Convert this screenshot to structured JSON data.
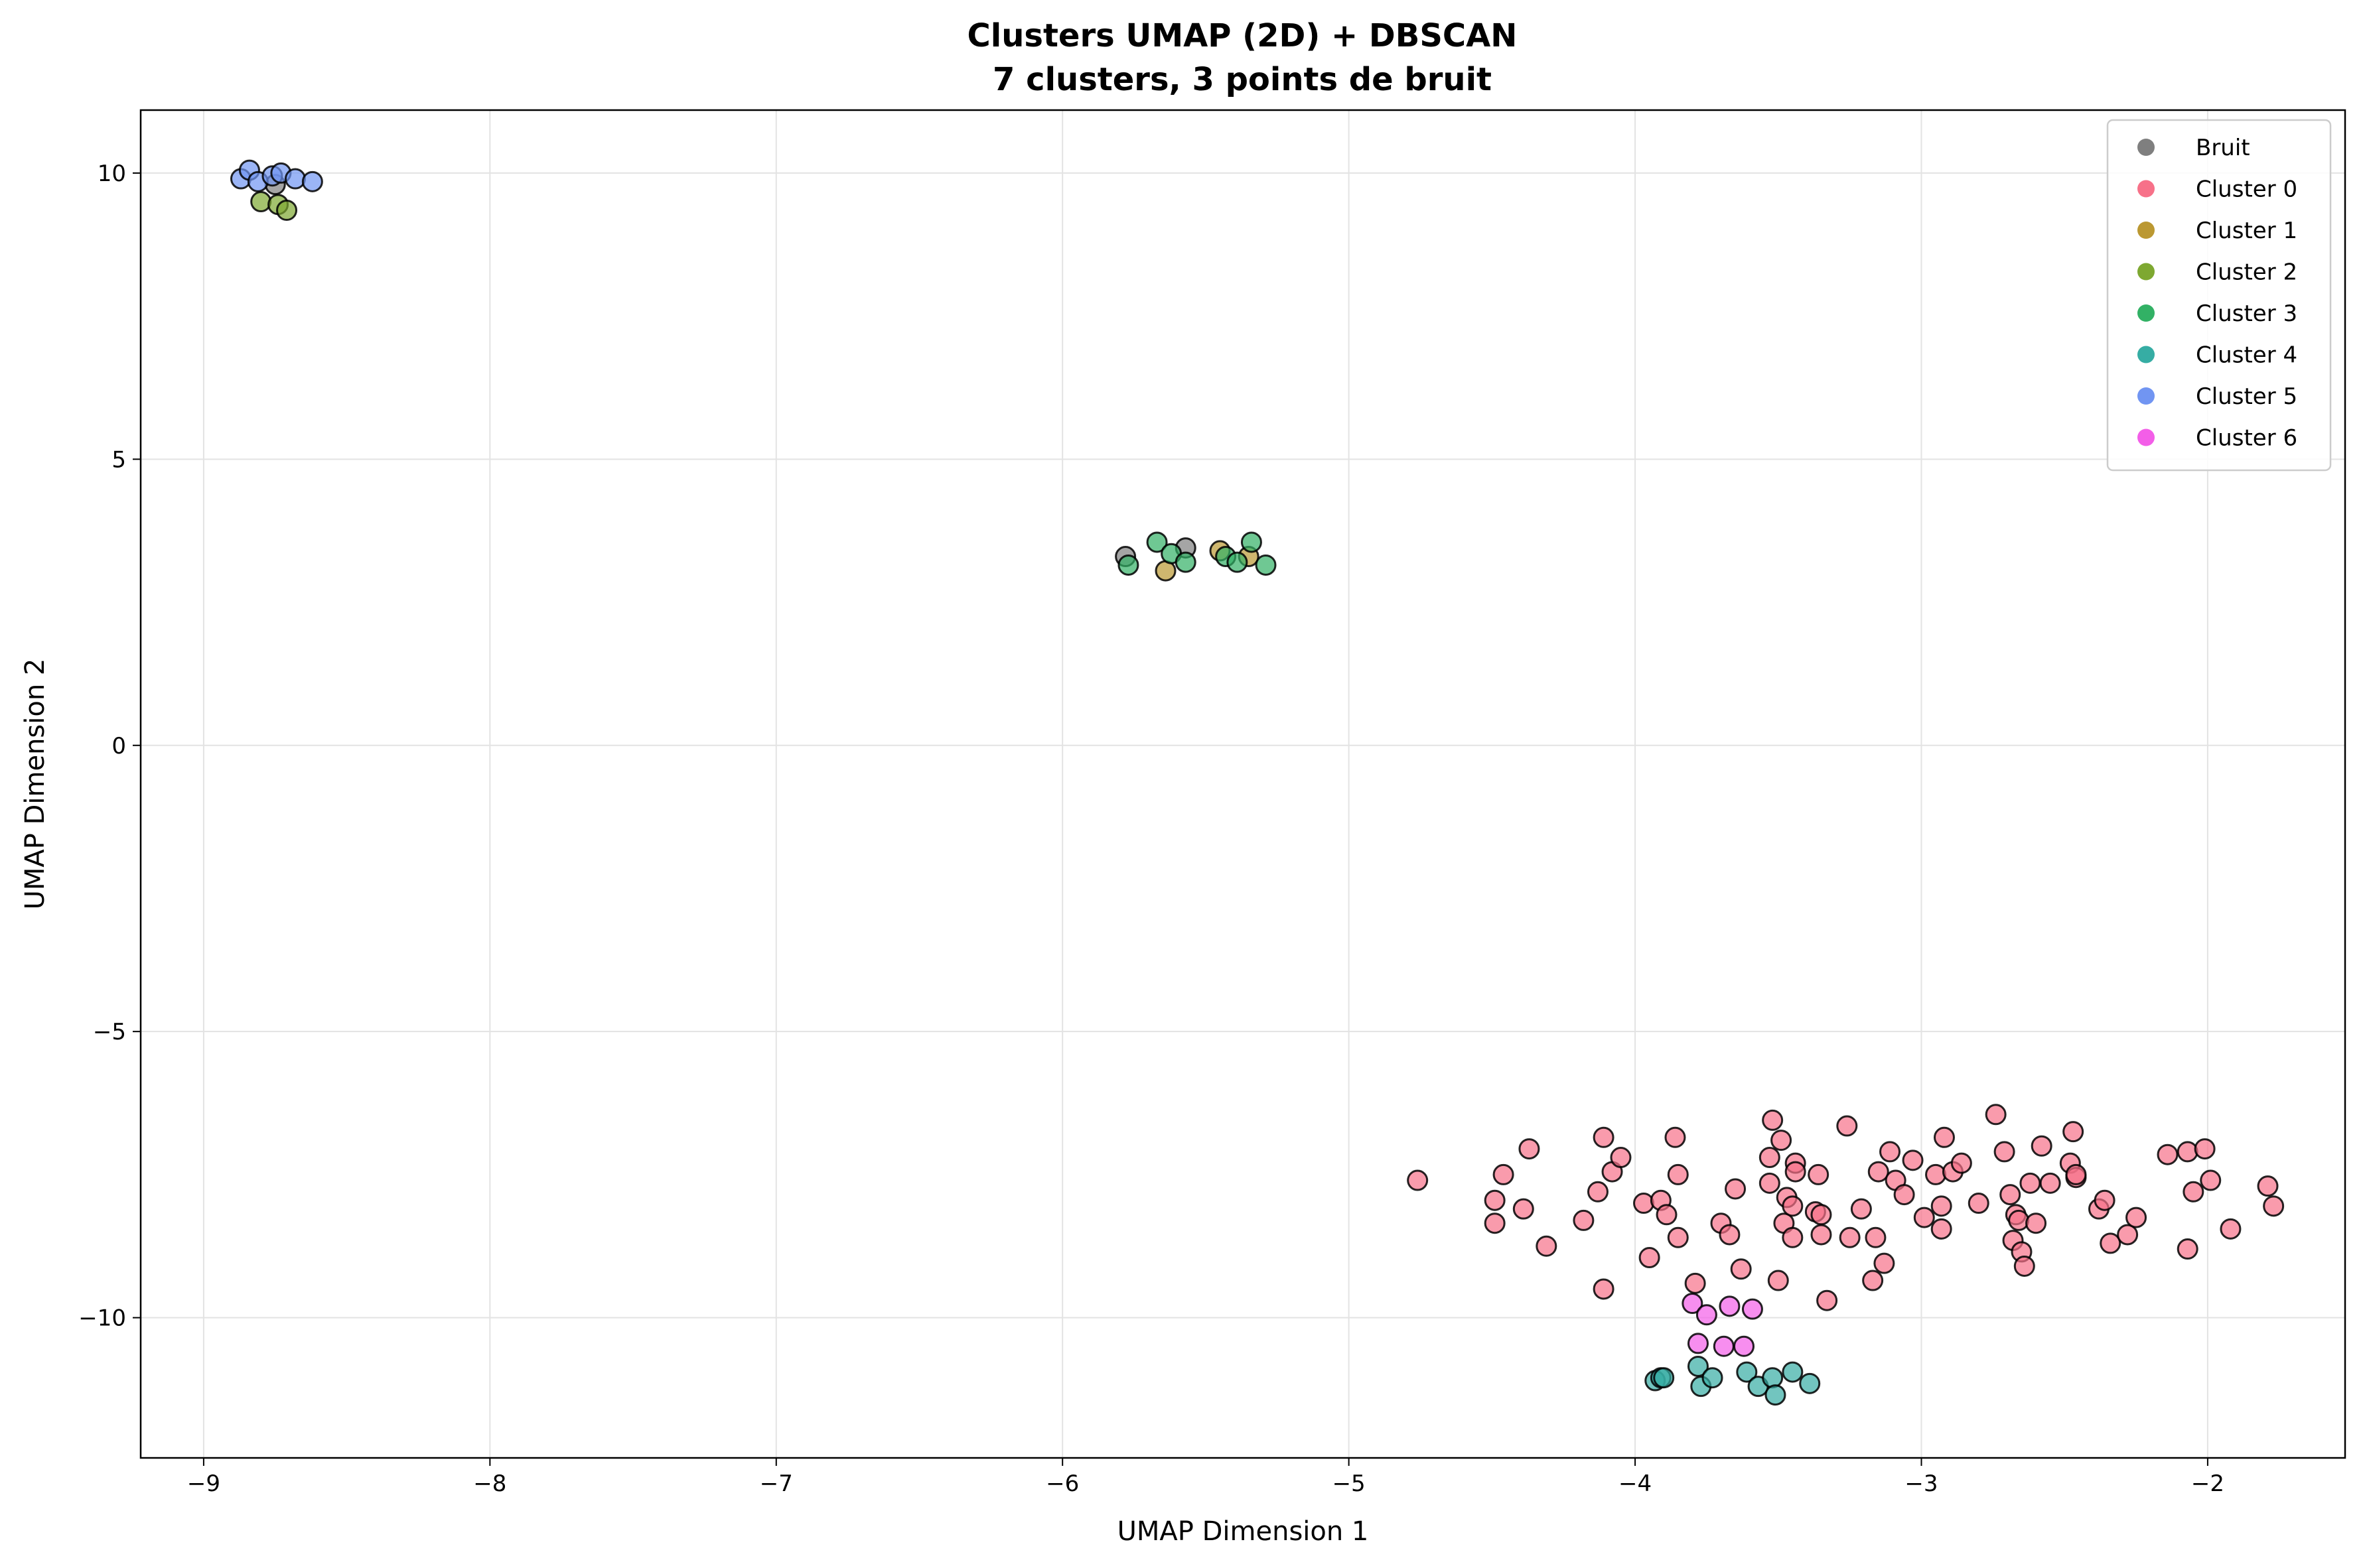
{
  "chart_data": {
    "type": "scatter",
    "title": "Clusters UMAP (2D) + DBSCAN",
    "subtitle": "7 clusters, 3 points de bruit",
    "xlabel": "UMAP Dimension 1",
    "ylabel": "UMAP Dimension 2",
    "xlim": [
      -9.22,
      -1.52
    ],
    "ylim": [
      -12.45,
      11.1
    ],
    "xticks": [
      -9,
      -8,
      -7,
      -6,
      -5,
      -4,
      -3,
      -2
    ],
    "yticks": [
      10,
      5,
      0,
      -5,
      -10
    ],
    "xtick_labels": [
      "−9",
      "−8",
      "−7",
      "−6",
      "−5",
      "−4",
      "−3",
      "−2"
    ],
    "ytick_labels": [
      "10",
      "5",
      "0",
      "−5",
      "−10"
    ],
    "grid": true,
    "legend_position": "top-right",
    "series": [
      {
        "name": "Bruit",
        "color": "#7f7f7f",
        "points": [
          [
            -8.75,
            9.8
          ],
          [
            -5.78,
            3.3
          ],
          [
            -5.57,
            3.45
          ]
        ]
      },
      {
        "name": "Cluster 0",
        "color": "#f77189",
        "points": [
          [
            -4.76,
            -7.6
          ],
          [
            -4.49,
            -7.95
          ],
          [
            -4.49,
            -8.35
          ],
          [
            -4.46,
            -7.5
          ],
          [
            -4.39,
            -8.1
          ],
          [
            -4.37,
            -7.05
          ],
          [
            -4.31,
            -8.75
          ],
          [
            -4.18,
            -8.3
          ],
          [
            -4.13,
            -7.8
          ],
          [
            -4.11,
            -6.85
          ],
          [
            -4.11,
            -9.5
          ],
          [
            -4.08,
            -7.45
          ],
          [
            -4.05,
            -7.2
          ],
          [
            -3.97,
            -8.0
          ],
          [
            -3.95,
            -8.95
          ],
          [
            -3.91,
            -7.95
          ],
          [
            -3.89,
            -8.2
          ],
          [
            -3.86,
            -6.85
          ],
          [
            -3.85,
            -7.5
          ],
          [
            -3.85,
            -8.6
          ],
          [
            -3.79,
            -9.4
          ],
          [
            -3.7,
            -8.35
          ],
          [
            -3.67,
            -8.55
          ],
          [
            -3.65,
            -7.75
          ],
          [
            -3.63,
            -9.15
          ],
          [
            -3.53,
            -7.2
          ],
          [
            -3.53,
            -7.65
          ],
          [
            -3.52,
            -6.55
          ],
          [
            -3.5,
            -9.35
          ],
          [
            -3.49,
            -6.9
          ],
          [
            -3.48,
            -8.35
          ],
          [
            -3.47,
            -7.9
          ],
          [
            -3.45,
            -8.6
          ],
          [
            -3.45,
            -8.05
          ],
          [
            -3.44,
            -7.3
          ],
          [
            -3.44,
            -7.45
          ],
          [
            -3.37,
            -8.15
          ],
          [
            -3.36,
            -7.5
          ],
          [
            -3.35,
            -8.55
          ],
          [
            -3.35,
            -8.2
          ],
          [
            -3.33,
            -9.7
          ],
          [
            -3.26,
            -6.65
          ],
          [
            -3.25,
            -8.6
          ],
          [
            -3.21,
            -8.1
          ],
          [
            -3.17,
            -9.35
          ],
          [
            -3.16,
            -8.6
          ],
          [
            -3.15,
            -7.45
          ],
          [
            -3.13,
            -9.05
          ],
          [
            -3.11,
            -7.1
          ],
          [
            -3.09,
            -7.6
          ],
          [
            -3.06,
            -7.85
          ],
          [
            -3.03,
            -7.25
          ],
          [
            -2.99,
            -8.25
          ],
          [
            -2.95,
            -7.5
          ],
          [
            -2.93,
            -8.05
          ],
          [
            -2.93,
            -8.45
          ],
          [
            -2.92,
            -6.85
          ],
          [
            -2.89,
            -7.45
          ],
          [
            -2.86,
            -7.3
          ],
          [
            -2.8,
            -8.0
          ],
          [
            -2.74,
            -6.45
          ],
          [
            -2.71,
            -7.1
          ],
          [
            -2.69,
            -7.85
          ],
          [
            -2.68,
            -8.65
          ],
          [
            -2.67,
            -8.2
          ],
          [
            -2.66,
            -8.3
          ],
          [
            -2.65,
            -8.85
          ],
          [
            -2.64,
            -9.1
          ],
          [
            -2.62,
            -7.65
          ],
          [
            -2.6,
            -8.35
          ],
          [
            -2.58,
            -7.0
          ],
          [
            -2.55,
            -7.65
          ],
          [
            -2.48,
            -7.3
          ],
          [
            -2.47,
            -6.75
          ],
          [
            -2.46,
            -7.55
          ],
          [
            -2.46,
            -7.5
          ],
          [
            -2.38,
            -8.1
          ],
          [
            -2.36,
            -7.95
          ],
          [
            -2.34,
            -8.7
          ],
          [
            -2.28,
            -8.55
          ],
          [
            -2.25,
            -8.25
          ],
          [
            -2.14,
            -7.15
          ],
          [
            -2.07,
            -7.1
          ],
          [
            -2.07,
            -8.8
          ],
          [
            -2.05,
            -7.8
          ],
          [
            -2.01,
            -7.05
          ],
          [
            -1.99,
            -7.6
          ],
          [
            -1.92,
            -8.45
          ],
          [
            -1.79,
            -7.7
          ],
          [
            -1.77,
            -8.05
          ]
        ]
      },
      {
        "name": "Cluster 1",
        "color": "#bb9832",
        "points": [
          [
            -5.64,
            3.05
          ],
          [
            -5.45,
            3.4
          ],
          [
            -5.35,
            3.3
          ]
        ]
      },
      {
        "name": "Cluster 2",
        "color": "#7ea831",
        "points": [
          [
            -8.8,
            9.5
          ],
          [
            -8.74,
            9.45
          ],
          [
            -8.71,
            9.35
          ]
        ]
      },
      {
        "name": "Cluster 3",
        "color": "#32b165",
        "points": [
          [
            -5.77,
            3.15
          ],
          [
            -5.67,
            3.55
          ],
          [
            -5.62,
            3.35
          ],
          [
            -5.57,
            3.2
          ],
          [
            -5.43,
            3.3
          ],
          [
            -5.39,
            3.2
          ],
          [
            -5.34,
            3.55
          ],
          [
            -5.29,
            3.15
          ]
        ]
      },
      {
        "name": "Cluster 4",
        "color": "#36ada4",
        "points": [
          [
            -3.93,
            -11.1
          ],
          [
            -3.91,
            -11.05
          ],
          [
            -3.9,
            -11.05
          ],
          [
            -3.78,
            -10.85
          ],
          [
            -3.77,
            -11.2
          ],
          [
            -3.73,
            -11.05
          ],
          [
            -3.61,
            -10.95
          ],
          [
            -3.57,
            -11.2
          ],
          [
            -3.52,
            -11.05
          ],
          [
            -3.51,
            -11.35
          ],
          [
            -3.45,
            -10.95
          ],
          [
            -3.39,
            -11.15
          ]
        ]
      },
      {
        "name": "Cluster 5",
        "color": "#7195f2",
        "points": [
          [
            -8.87,
            9.9
          ],
          [
            -8.84,
            10.05
          ],
          [
            -8.81,
            9.85
          ],
          [
            -8.76,
            9.95
          ],
          [
            -8.73,
            10.0
          ],
          [
            -8.68,
            9.9
          ],
          [
            -8.62,
            9.85
          ]
        ]
      },
      {
        "name": "Cluster 6",
        "color": "#f35ee8",
        "points": [
          [
            -3.8,
            -9.75
          ],
          [
            -3.78,
            -10.45
          ],
          [
            -3.75,
            -9.95
          ],
          [
            -3.69,
            -10.5
          ],
          [
            -3.67,
            -9.8
          ],
          [
            -3.62,
            -10.5
          ],
          [
            -3.59,
            -9.85
          ]
        ]
      }
    ]
  }
}
